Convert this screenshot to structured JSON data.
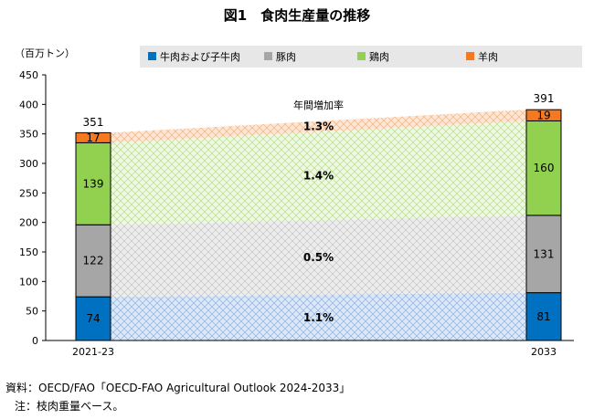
{
  "title": "図1　食肉生産量の推移",
  "source": "資料：OECD/FAO「OECD-FAO Agricultural Outlook 2024-2033」",
  "note": "注：枝肉重量ベース。",
  "chart_data": {
    "type": "bar",
    "title": "図1　食肉生産量の推移",
    "ylabel": "（百万トン）",
    "xlabel": "",
    "ylim": [
      0,
      450
    ],
    "yticks": [
      0,
      50,
      100,
      150,
      200,
      250,
      300,
      350,
      400,
      450
    ],
    "categories": [
      "2021-23",
      "2033"
    ],
    "series": [
      {
        "name": "牛肉および子牛肉",
        "values": [
          74,
          81
        ],
        "color": "#0070c0",
        "growth_label": "1.1%"
      },
      {
        "name": "豚肉",
        "values": [
          122,
          131
        ],
        "color": "#a6a6a6",
        "growth_label": "0.5%"
      },
      {
        "name": "鶏肉",
        "values": [
          139,
          160
        ],
        "color": "#92d050",
        "growth_label": "1.4%"
      },
      {
        "name": "羊肉",
        "values": [
          17,
          19
        ],
        "color": "#f47920",
        "growth_label": "1.3%"
      }
    ],
    "totals": [
      351,
      391
    ],
    "annotation": "年間増加率",
    "legend_position": "top",
    "grid": false
  }
}
